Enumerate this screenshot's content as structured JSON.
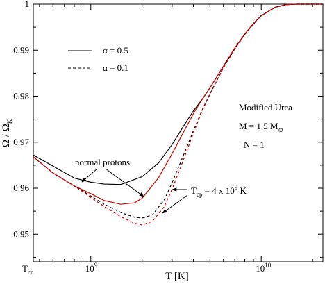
{
  "chart_data": {
    "type": "line",
    "title": "",
    "xlabel": "T [K]",
    "ylabel": {
      "main": "Ω / Ω",
      "sub": "K"
    },
    "x_scale": "log",
    "xlim": [
      460000000.0,
      23000000000.0
    ],
    "ylim": [
      0.944,
      1.0
    ],
    "grid": false,
    "x_ticks": [
      {
        "value": 1000000000.0,
        "base": "10",
        "exp": "9"
      },
      {
        "value": 10000000000.0,
        "base": "10",
        "exp": "10"
      }
    ],
    "x_extra_label": {
      "main": "T",
      "sub": "cn"
    },
    "y_ticks": [
      {
        "value": 0.95,
        "label": "0.95"
      },
      {
        "value": 0.96,
        "label": "0.96"
      },
      {
        "value": 0.97,
        "label": "0.97"
      },
      {
        "value": 0.98,
        "label": "0.98"
      },
      {
        "value": 0.99,
        "label": "0.99"
      },
      {
        "value": 1.0,
        "label": "1"
      }
    ],
    "legend": {
      "placement": "top-left",
      "entries": [
        {
          "label": "α = 0.5",
          "dash": "solid"
        },
        {
          "label": "α = 0.1",
          "dash": "dashed"
        }
      ]
    },
    "text_block": [
      {
        "main": "Modified Urca",
        "sub": ""
      },
      {
        "main": "M = 1.5 M",
        "sub": "⊙"
      },
      {
        "main": "N = 1",
        "sub": ""
      }
    ],
    "annotations": {
      "normal_protons": "normal protons",
      "tcp": {
        "pre": "T",
        "sub": "cp",
        "mid": " = 4 x 10",
        "sup": "9",
        "post": " K"
      }
    },
    "series": [
      {
        "color": "#000000",
        "dash": "solid",
        "points": [
          [
            460000000.0,
            0.9672
          ],
          [
            600000000.0,
            0.9648
          ],
          [
            800000000.0,
            0.9622
          ],
          [
            1000000000.0,
            0.9613
          ],
          [
            1200000000.0,
            0.9609
          ],
          [
            1500000000.0,
            0.9608
          ],
          [
            2000000000.0,
            0.9625
          ],
          [
            2500000000.0,
            0.9655
          ],
          [
            3000000000.0,
            0.9695
          ],
          [
            3500000000.0,
            0.9735
          ],
          [
            4000000000.0,
            0.9768
          ],
          [
            4500000000.0,
            0.9793
          ],
          [
            5000000000.0,
            0.9818
          ],
          [
            6000000000.0,
            0.9865
          ],
          [
            7000000000.0,
            0.9905
          ],
          [
            8000000000.0,
            0.9935
          ],
          [
            9000000000.0,
            0.9958
          ],
          [
            10000000000.0,
            0.9975
          ],
          [
            12000000000.0,
            0.9993
          ],
          [
            14000000000.0,
            0.9999
          ],
          [
            16000000000.0,
            1.0
          ],
          [
            23000000000.0,
            1.0
          ]
        ]
      },
      {
        "color": "#cc0000",
        "dash": "solid",
        "points": [
          [
            460000000.0,
            0.9668
          ],
          [
            600000000.0,
            0.9633
          ],
          [
            800000000.0,
            0.9605
          ],
          [
            1000000000.0,
            0.9588
          ],
          [
            1200000000.0,
            0.9573
          ],
          [
            1500000000.0,
            0.9565
          ],
          [
            1800000000.0,
            0.9568
          ],
          [
            2000000000.0,
            0.9578
          ],
          [
            2500000000.0,
            0.9623
          ],
          [
            3000000000.0,
            0.9675
          ],
          [
            3500000000.0,
            0.9722
          ],
          [
            4000000000.0,
            0.9762
          ],
          [
            4500000000.0,
            0.9793
          ],
          [
            5000000000.0,
            0.9818
          ],
          [
            6000000000.0,
            0.9865
          ],
          [
            7000000000.0,
            0.9905
          ],
          [
            8000000000.0,
            0.9935
          ],
          [
            9000000000.0,
            0.9958
          ],
          [
            10000000000.0,
            0.9975
          ],
          [
            12000000000.0,
            0.9993
          ],
          [
            14000000000.0,
            0.9999
          ],
          [
            16000000000.0,
            1.0
          ],
          [
            23000000000.0,
            1.0
          ]
        ]
      },
      {
        "color": "#000000",
        "dash": "dashed",
        "points": [
          [
            460000000.0,
            0.9668
          ],
          [
            600000000.0,
            0.9633
          ],
          [
            800000000.0,
            0.9605
          ],
          [
            1000000000.0,
            0.9583
          ],
          [
            1200000000.0,
            0.9565
          ],
          [
            1500000000.0,
            0.9547
          ],
          [
            1800000000.0,
            0.9537
          ],
          [
            2000000000.0,
            0.9535
          ],
          [
            2300000000.0,
            0.9542
          ],
          [
            2700000000.0,
            0.9575
          ],
          [
            3000000000.0,
            0.9612
          ],
          [
            3500000000.0,
            0.9672
          ],
          [
            4000000000.0,
            0.9725
          ],
          [
            4500000000.0,
            0.977
          ],
          [
            5000000000.0,
            0.9805
          ],
          [
            6000000000.0,
            0.9862
          ],
          [
            7000000000.0,
            0.9903
          ],
          [
            8000000000.0,
            0.9934
          ],
          [
            9000000000.0,
            0.9957
          ],
          [
            10000000000.0,
            0.9975
          ],
          [
            12000000000.0,
            0.9993
          ],
          [
            14000000000.0,
            0.9999
          ],
          [
            16000000000.0,
            1.0
          ],
          [
            23000000000.0,
            1.0
          ]
        ]
      },
      {
        "color": "#cc0000",
        "dash": "dashed",
        "points": [
          [
            460000000.0,
            0.9668
          ],
          [
            600000000.0,
            0.9633
          ],
          [
            800000000.0,
            0.9605
          ],
          [
            1000000000.0,
            0.958
          ],
          [
            1200000000.0,
            0.956
          ],
          [
            1500000000.0,
            0.9538
          ],
          [
            1800000000.0,
            0.9524
          ],
          [
            2000000000.0,
            0.952
          ],
          [
            2300000000.0,
            0.9528
          ],
          [
            2700000000.0,
            0.956
          ],
          [
            3000000000.0,
            0.9598
          ],
          [
            3500000000.0,
            0.9662
          ],
          [
            4000000000.0,
            0.972
          ],
          [
            4500000000.0,
            0.9768
          ],
          [
            5000000000.0,
            0.9804
          ],
          [
            6000000000.0,
            0.9862
          ],
          [
            7000000000.0,
            0.9903
          ],
          [
            8000000000.0,
            0.9934
          ],
          [
            9000000000.0,
            0.9957
          ],
          [
            10000000000.0,
            0.9975
          ],
          [
            12000000000.0,
            0.9993
          ],
          [
            14000000000.0,
            0.9999
          ],
          [
            16000000000.0,
            1.0
          ],
          [
            23000000000.0,
            1.0
          ]
        ]
      }
    ]
  }
}
